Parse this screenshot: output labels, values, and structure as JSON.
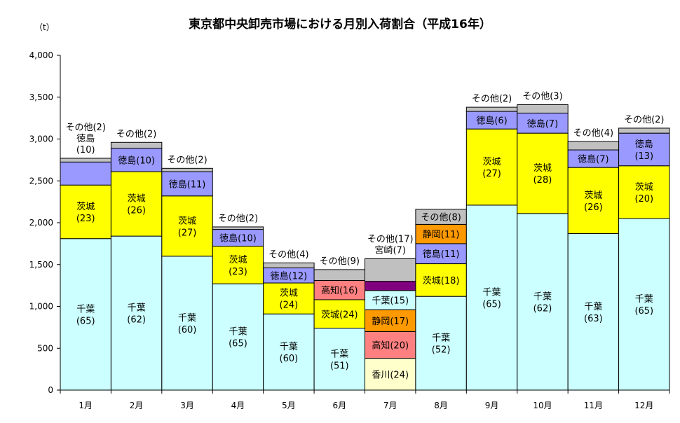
{
  "title": "東京都中央卸売市場における月別入荷割合（平成16年）",
  "unit_label": "（t）",
  "chart_data": {
    "type": "bar",
    "stacked": true,
    "title": "東京都中央卸売市場における月別入荷割合（平成16年）",
    "ylabel": "（t）",
    "ylim": [
      0,
      4000
    ],
    "yticks": [
      "0",
      "500",
      "1,000",
      "1,500",
      "2,000",
      "2,500",
      "3,000",
      "3,500",
      "4,000"
    ],
    "ytick_values": [
      0,
      500,
      1000,
      1500,
      2000,
      2500,
      3000,
      3500,
      4000
    ],
    "colors": {
      "千葉": "#ccffff",
      "茨城": "#ffff00",
      "徳島": "#9999ff",
      "その他": "#c0c0c0",
      "高知": "#ff8080",
      "静岡": "#ff9900",
      "宮崎": "#800080",
      "香川": "#ffffcc"
    },
    "categories": [
      "1月",
      "2月",
      "3月",
      "4月",
      "5月",
      "6月",
      "7月",
      "8月",
      "9月",
      "10月",
      "11月",
      "12月"
    ],
    "bars": [
      {
        "month": "1月",
        "segments": [
          {
            "name": "千葉",
            "value": 1810,
            "label": "千葉\n(65)"
          },
          {
            "name": "茨城",
            "value": 640,
            "label": "茨城\n(23)"
          },
          {
            "name": "徳島",
            "value": 275,
            "label": "徳島\n(10)",
            "outside": true
          },
          {
            "name": "その他",
            "value": 45,
            "label": "その他(2)",
            "outside": true
          }
        ]
      },
      {
        "month": "2月",
        "segments": [
          {
            "name": "千葉",
            "value": 1840,
            "label": "千葉\n(62)"
          },
          {
            "name": "茨城",
            "value": 770,
            "label": "茨城\n(26)"
          },
          {
            "name": "徳島",
            "value": 280,
            "label": "徳島(10)"
          },
          {
            "name": "その他",
            "value": 70,
            "label": "その他(2)",
            "outside": true
          }
        ]
      },
      {
        "month": "3月",
        "segments": [
          {
            "name": "千葉",
            "value": 1600,
            "label": "千葉\n(60)"
          },
          {
            "name": "茨城",
            "value": 720,
            "label": "茨城\n(27)"
          },
          {
            "name": "徳島",
            "value": 290,
            "label": "徳島(11)"
          },
          {
            "name": "その他",
            "value": 40,
            "label": "その他(2)",
            "outside": true
          }
        ]
      },
      {
        "month": "4月",
        "segments": [
          {
            "name": "千葉",
            "value": 1270,
            "label": "千葉\n(65)"
          },
          {
            "name": "茨城",
            "value": 450,
            "label": "茨城\n(23)"
          },
          {
            "name": "徳島",
            "value": 200,
            "label": "徳島(10)"
          },
          {
            "name": "その他",
            "value": 30,
            "label": "その他(2)",
            "outside": true
          }
        ]
      },
      {
        "month": "5月",
        "segments": [
          {
            "name": "千葉",
            "value": 910,
            "label": "千葉\n(60)"
          },
          {
            "name": "茨城",
            "value": 370,
            "label": "茨城\n(24)"
          },
          {
            "name": "徳島",
            "value": 180,
            "label": "徳島(12)"
          },
          {
            "name": "その他",
            "value": 60,
            "label": "その他(4)",
            "outside": true
          }
        ]
      },
      {
        "month": "6月",
        "segments": [
          {
            "name": "千葉",
            "value": 740,
            "label": "千葉\n(51)"
          },
          {
            "name": "茨城",
            "value": 340,
            "label": "茨城(24)"
          },
          {
            "name": "高知",
            "value": 230,
            "label": "高知(16)"
          },
          {
            "name": "その他",
            "value": 130,
            "label": "その他(9)",
            "outside": true
          }
        ]
      },
      {
        "month": "7月",
        "segments": [
          {
            "name": "香川",
            "value": 380,
            "label": "香川(24)"
          },
          {
            "name": "高知",
            "value": 320,
            "label": "高知(20)"
          },
          {
            "name": "静岡",
            "value": 260,
            "label": "静岡(17)"
          },
          {
            "name": "千葉",
            "value": 230,
            "label": "千葉(15)"
          },
          {
            "name": "宮崎",
            "value": 110,
            "label": "宮崎(7)",
            "outside": true
          },
          {
            "name": "その他",
            "value": 270,
            "label": "その他(17)",
            "outside": true
          }
        ]
      },
      {
        "month": "8月",
        "segments": [
          {
            "name": "千葉",
            "value": 1120,
            "label": "千葉\n(52)"
          },
          {
            "name": "茨城",
            "value": 390,
            "label": "茨城(18)"
          },
          {
            "name": "徳島",
            "value": 240,
            "label": "徳島(11)"
          },
          {
            "name": "静岡",
            "value": 230,
            "label": "静岡(11)"
          },
          {
            "name": "その他",
            "value": 180,
            "label": "その他(8)"
          }
        ]
      },
      {
        "month": "9月",
        "segments": [
          {
            "name": "千葉",
            "value": 2210,
            "label": "千葉\n(65)"
          },
          {
            "name": "茨城",
            "value": 910,
            "label": "茨城\n(27)"
          },
          {
            "name": "徳島",
            "value": 210,
            "label": "徳島(6)"
          },
          {
            "name": "その他",
            "value": 50,
            "label": "その他(2)",
            "outside": true
          }
        ]
      },
      {
        "month": "10月",
        "segments": [
          {
            "name": "千葉",
            "value": 2110,
            "label": "千葉\n(62)"
          },
          {
            "name": "茨城",
            "value": 960,
            "label": "茨城\n(28)"
          },
          {
            "name": "徳島",
            "value": 240,
            "label": "徳島(7)"
          },
          {
            "name": "その他",
            "value": 100,
            "label": "その他(3)",
            "outside": true
          }
        ]
      },
      {
        "month": "11月",
        "segments": [
          {
            "name": "千葉",
            "value": 1870,
            "label": "千葉\n(63)"
          },
          {
            "name": "茨城",
            "value": 790,
            "label": "茨城\n(26)"
          },
          {
            "name": "徳島",
            "value": 210,
            "label": "徳島(7)"
          },
          {
            "name": "その他",
            "value": 100,
            "label": "その他(4)",
            "outside": true
          }
        ]
      },
      {
        "month": "12月",
        "segments": [
          {
            "name": "千葉",
            "value": 2050,
            "label": "千葉\n(65)"
          },
          {
            "name": "茨城",
            "value": 630,
            "label": "茨城\n(20)"
          },
          {
            "name": "徳島",
            "value": 390,
            "label": "徳島\n(13)"
          },
          {
            "name": "その他",
            "value": 60,
            "label": "その他(2)",
            "outside": true
          }
        ]
      }
    ]
  }
}
